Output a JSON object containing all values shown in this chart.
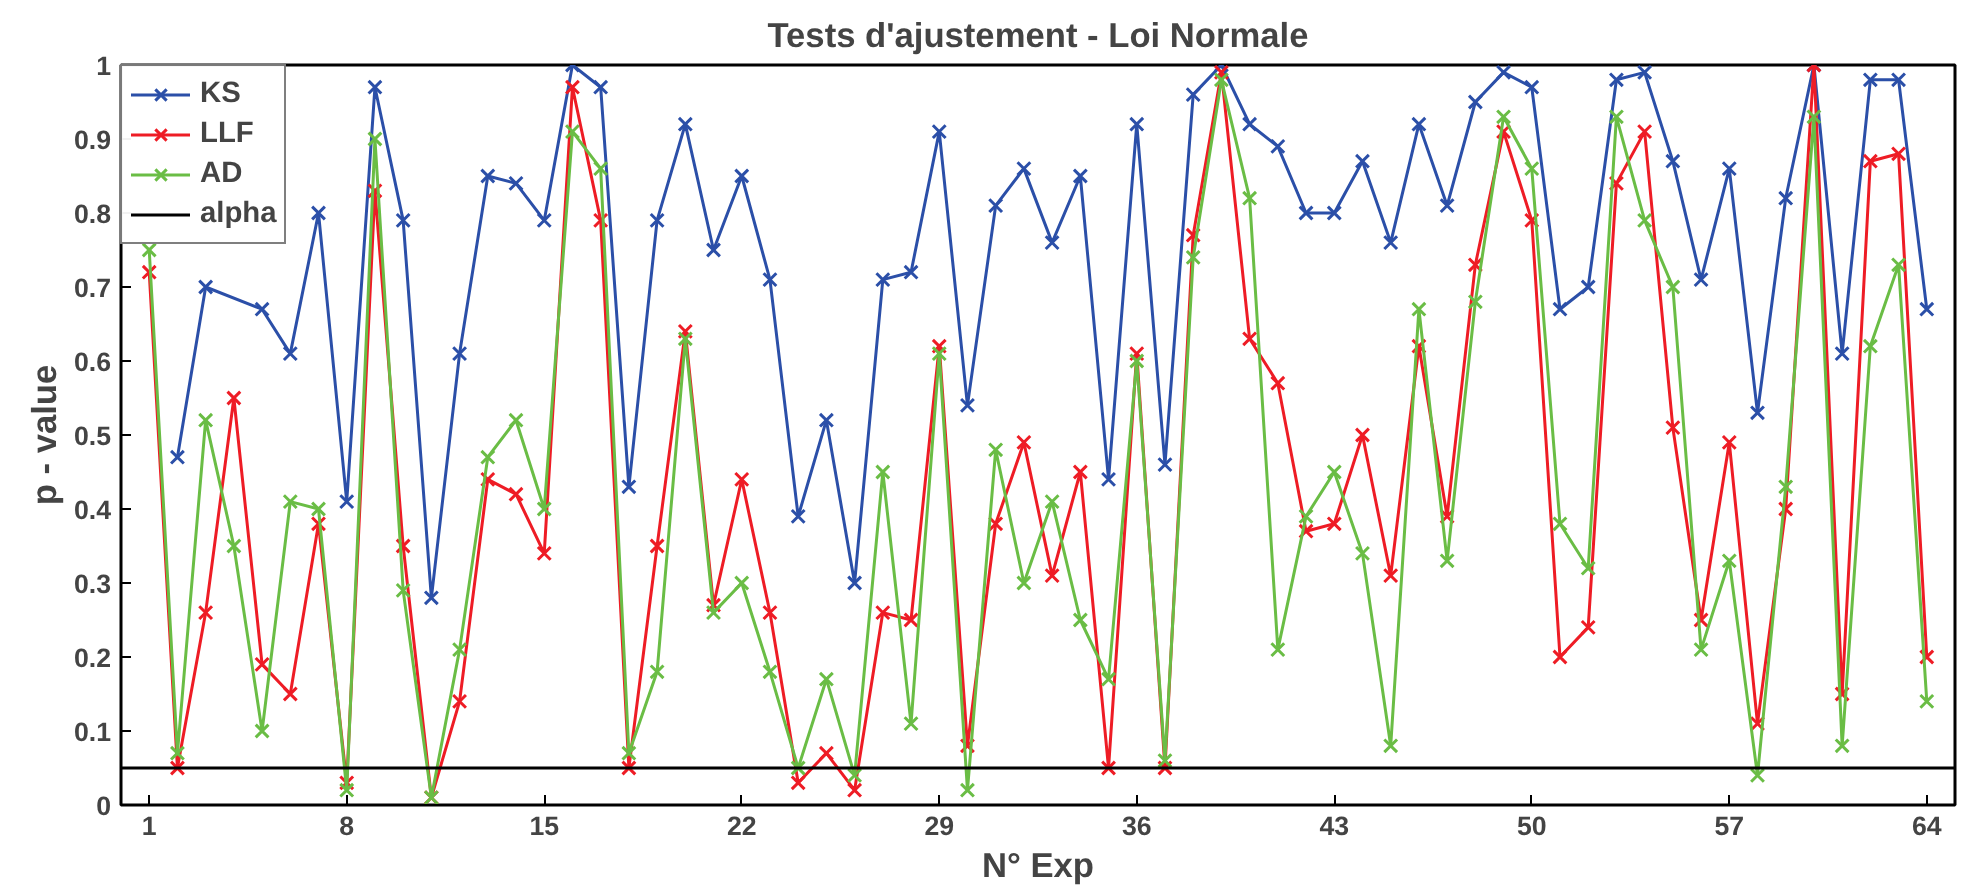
{
  "chart_data": {
    "type": "line",
    "title": "Tests d'ajustement - Loi Normale",
    "xlabel": "N° Exp",
    "ylabel": "p - value",
    "x": [
      1,
      2,
      3,
      4,
      5,
      6,
      7,
      8,
      9,
      10,
      11,
      12,
      13,
      14,
      15,
      16,
      17,
      18,
      19,
      20,
      21,
      22,
      23,
      24,
      25,
      26,
      27,
      28,
      29,
      30,
      31,
      32,
      33,
      34,
      35,
      36,
      37,
      38,
      39,
      40,
      41,
      42,
      43,
      44,
      45,
      46,
      47,
      48,
      49,
      50,
      51,
      52,
      53,
      54,
      55,
      56,
      57,
      58,
      59,
      60,
      61,
      62,
      63,
      64
    ],
    "series": [
      {
        "name": "KS",
        "color": "#2b4fa8",
        "values": [
          null,
          0.47,
          0.7,
          null,
          0.67,
          0.61,
          0.8,
          0.41,
          0.97,
          0.79,
          0.28,
          0.61,
          0.85,
          0.84,
          0.79,
          1.0,
          0.97,
          0.43,
          0.79,
          0.92,
          0.75,
          0.85,
          0.71,
          0.39,
          0.52,
          0.3,
          0.71,
          0.72,
          0.91,
          0.54,
          0.81,
          0.86,
          0.76,
          0.85,
          0.44,
          0.92,
          0.46,
          0.96,
          1.0,
          0.92,
          0.89,
          0.8,
          0.8,
          0.87,
          0.76,
          0.92,
          0.81,
          0.95,
          0.99,
          0.97,
          0.67,
          0.7,
          0.98,
          0.99,
          0.87,
          0.71,
          0.86,
          0.53,
          0.82,
          1.0,
          0.61,
          0.98,
          0.98,
          0.67
        ]
      },
      {
        "name": "LLF",
        "color": "#ee1c25",
        "values": [
          0.72,
          0.05,
          0.26,
          0.55,
          0.19,
          0.15,
          0.38,
          0.03,
          0.83,
          0.35,
          0.01,
          0.14,
          0.44,
          0.42,
          0.34,
          0.97,
          0.79,
          0.05,
          0.35,
          0.64,
          0.27,
          0.44,
          0.26,
          0.03,
          0.07,
          0.02,
          0.26,
          0.25,
          0.62,
          0.08,
          0.38,
          0.49,
          0.31,
          0.45,
          0.05,
          0.61,
          0.05,
          0.77,
          0.99,
          0.63,
          0.57,
          0.37,
          0.38,
          0.5,
          0.31,
          0.62,
          0.39,
          0.73,
          0.91,
          0.79,
          0.2,
          0.24,
          0.84,
          0.91,
          0.51,
          0.25,
          0.49,
          0.11,
          0.4,
          1.0,
          0.15,
          0.87,
          0.88,
          0.2
        ]
      },
      {
        "name": "AD",
        "color": "#6abd45",
        "values": [
          0.75,
          0.07,
          0.52,
          0.35,
          0.1,
          0.41,
          0.4,
          0.02,
          0.9,
          0.29,
          0.01,
          0.21,
          0.47,
          0.52,
          0.4,
          0.91,
          0.86,
          0.07,
          0.18,
          0.63,
          0.26,
          0.3,
          0.18,
          0.05,
          0.17,
          0.04,
          0.45,
          0.11,
          0.61,
          0.02,
          0.48,
          0.3,
          0.41,
          0.25,
          0.17,
          0.6,
          0.06,
          0.74,
          0.98,
          0.82,
          0.21,
          0.39,
          0.45,
          0.34,
          0.08,
          0.67,
          0.33,
          0.68,
          0.93,
          0.86,
          0.38,
          0.32,
          0.93,
          0.79,
          0.7,
          0.21,
          0.33,
          0.04,
          0.43,
          0.93,
          0.08,
          0.62,
          0.73,
          0.14
        ]
      }
    ],
    "ref_lines": [
      {
        "axis": "y",
        "value": 0.05,
        "label": "alpha",
        "color": "#000000",
        "line_style": "solid"
      }
    ],
    "xlim": [
      0,
      65
    ],
    "xticks": [
      1,
      8,
      15,
      22,
      29,
      36,
      43,
      50,
      57,
      64
    ],
    "ylim": [
      0,
      1
    ],
    "yticks": [
      0,
      0.1,
      0.2,
      0.3,
      0.4,
      0.5,
      0.6,
      0.7,
      0.8,
      0.9,
      1
    ],
    "grid": false,
    "legend": "top left",
    "marker": "cross",
    "line_style": "solid"
  }
}
